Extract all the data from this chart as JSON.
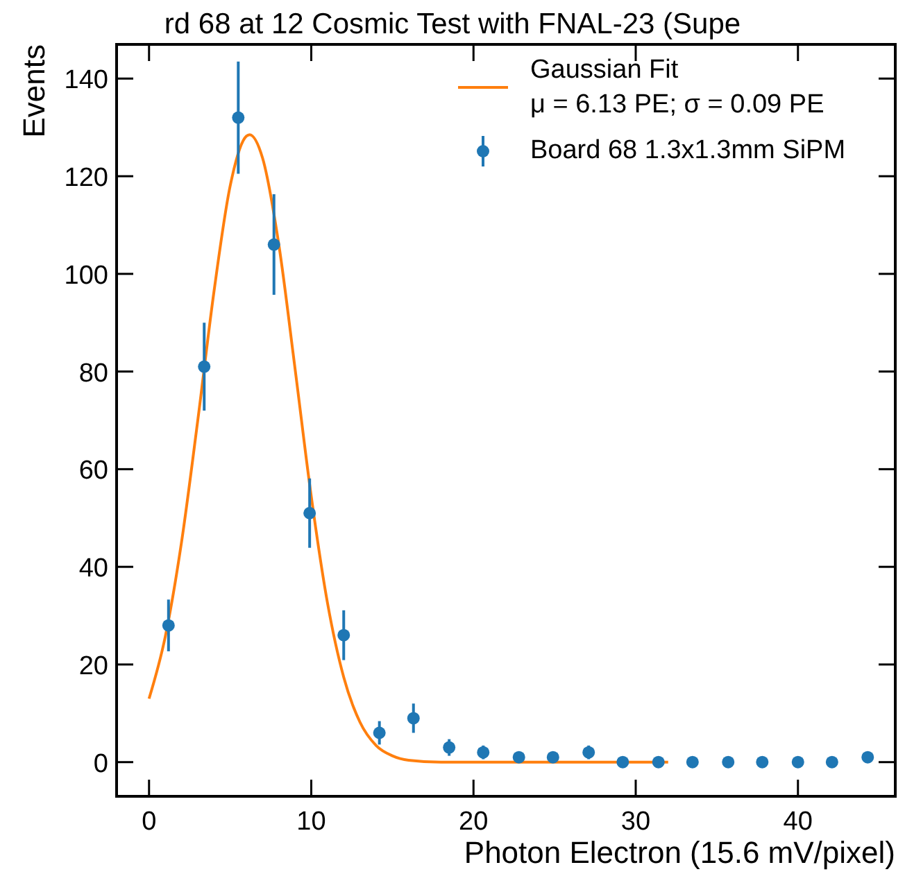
{
  "chart_data": {
    "type": "scatter",
    "title": "rd 68 at 12 Cosmic Test with FNAL-23 (Supe",
    "xlabel": "Photon Electron (15.6 mV/pixel)",
    "ylabel": "Events",
    "xlim": [
      -2,
      46
    ],
    "ylim": [
      -7,
      147
    ],
    "xticks": [
      0,
      10,
      20,
      30,
      40
    ],
    "yticks": [
      0,
      20,
      40,
      60,
      80,
      100,
      120,
      140
    ],
    "grid": false,
    "legend": "top right",
    "series": [
      {
        "type": "line",
        "name": "Gaussian Fit\nμ = 6.13 PE; σ = 0.09 PE",
        "color": "#ff7f0e",
        "line_style": "solid",
        "x": [
          0,
          1,
          2,
          3,
          4,
          5,
          6,
          6.2,
          7,
          8,
          9,
          10,
          11,
          12,
          13,
          14,
          15,
          16,
          18,
          20,
          32
        ],
        "values": [
          13,
          25.7,
          45,
          69.9,
          96.3,
          118,
          128.2,
          128.5,
          123.7,
          106,
          80.6,
          54.4,
          32.6,
          17.4,
          8.2,
          3.4,
          1.3,
          0.4,
          0,
          0,
          0
        ]
      },
      {
        "name": "Board 68 1.3x1.3mm SiPM",
        "marker": "circle",
        "color": "#1f77b4",
        "x": [
          1.2,
          3.4,
          5.5,
          7.7,
          9.9,
          12.0,
          14.2,
          16.3,
          18.5,
          20.6,
          22.8,
          24.9,
          27.1,
          29.2,
          31.4,
          33.5,
          35.7,
          37.8,
          40.0,
          42.1,
          44.3
        ],
        "values": [
          28,
          81,
          132,
          106,
          51,
          26,
          6,
          9,
          3,
          2,
          1,
          1,
          2,
          0,
          0,
          0,
          0,
          0,
          0,
          0,
          1
        ],
        "errors": [
          5.3,
          9,
          11.5,
          10.3,
          7.1,
          5.1,
          2.4,
          3,
          1.7,
          1.4,
          1,
          1,
          1.4,
          null,
          null,
          null,
          null,
          null,
          null,
          null,
          1
        ]
      }
    ]
  }
}
